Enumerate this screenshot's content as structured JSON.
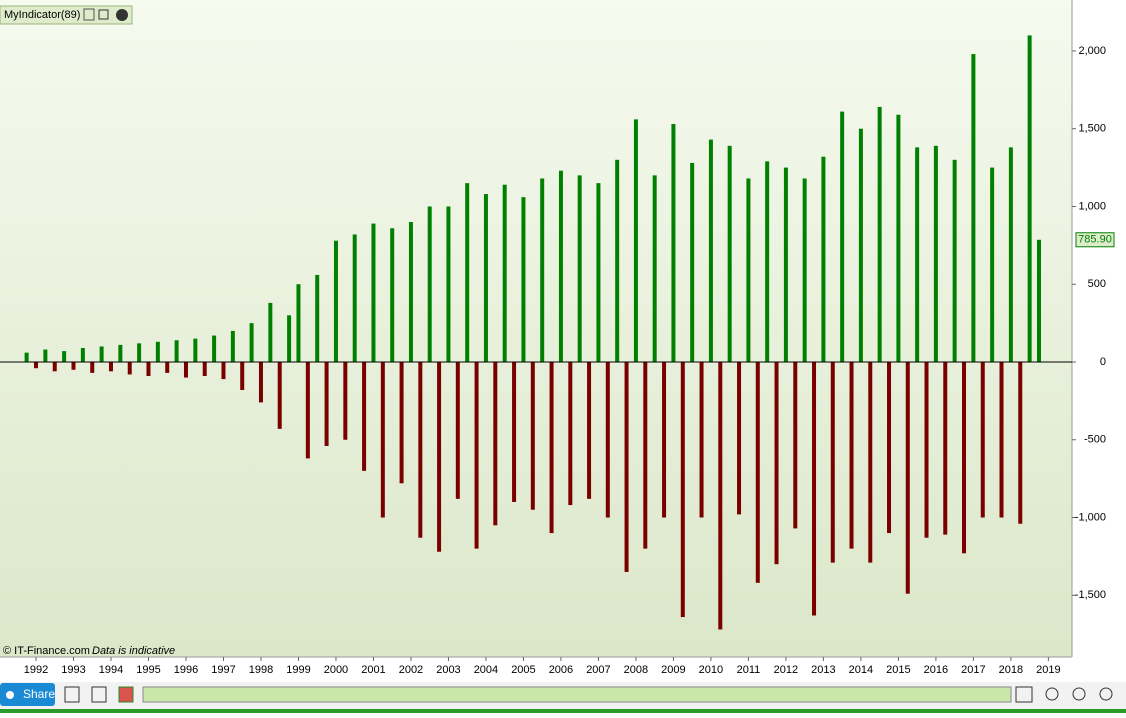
{
  "chart_data": {
    "type": "bar",
    "title": "MyIndicator(89)",
    "source": "© IT-Finance.com",
    "note": "Data is indicative",
    "up_color": "#008000",
    "down_color": "#7a0000",
    "xlim": [
      1991.04,
      2019.63
    ],
    "ylim": [
      -1884,
      2289
    ],
    "xticks": [
      1992,
      1993,
      1994,
      1995,
      1996,
      1997,
      1998,
      1999,
      2000,
      2001,
      2002,
      2003,
      2004,
      2005,
      2006,
      2007,
      2008,
      2009,
      2010,
      2011,
      2012,
      2013,
      2014,
      2015,
      2016,
      2017,
      2018,
      2019
    ],
    "yticks": [
      {
        "value": -1500,
        "label": "-1,500"
      },
      {
        "value": -1000,
        "label": "-1,000"
      },
      -500,
      0,
      500,
      {
        "value": 1000,
        "label": "1,000"
      },
      {
        "value": 1500,
        "label": "1,500"
      },
      {
        "value": 2000,
        "label": "2,000"
      }
    ],
    "x": [
      1991.75,
      1992,
      1992.25,
      1992.5,
      1992.75,
      1993,
      1993.25,
      1993.5,
      1993.75,
      1994,
      1994.25,
      1994.5,
      1994.75,
      1995,
      1995.25,
      1995.5,
      1995.75,
      1996,
      1996.25,
      1996.5,
      1996.75,
      1997,
      1997.25,
      1997.5,
      1997.75,
      1998,
      1998.25,
      1998.5,
      1998.75,
      1999,
      1999.25,
      1999.5,
      1999.75,
      2000,
      2000.25,
      2000.5,
      2000.75,
      2001,
      2001.25,
      2001.5,
      2001.75,
      2002,
      2002.25,
      2002.5,
      2002.75,
      2003,
      2003.25,
      2003.5,
      2003.75,
      2004,
      2004.25,
      2004.5,
      2004.75,
      2005,
      2005.25,
      2005.5,
      2005.75,
      2006,
      2006.25,
      2006.5,
      2006.75,
      2007,
      2007.25,
      2007.5,
      2007.75,
      2008,
      2008.25,
      2008.5,
      2008.75,
      2009,
      2009.25,
      2009.5,
      2009.75,
      2010,
      2010.25,
      2010.5,
      2010.75,
      2011,
      2011.25,
      2011.5,
      2011.75,
      2012,
      2012.25,
      2012.5,
      2012.75,
      2013,
      2013.25,
      2013.5,
      2013.75,
      2014,
      2014.25,
      2014.5,
      2014.75,
      2015,
      2015.25,
      2015.5,
      2015.75,
      2016,
      2016.25,
      2016.5,
      2016.75,
      2017,
      2017.25,
      2017.5,
      2017.75,
      2018,
      2018.25,
      2018.5,
      2018.75
    ],
    "values": [
      60,
      -40,
      80,
      -60,
      70,
      -50,
      90,
      -70,
      100,
      -60,
      110,
      -80,
      120,
      -90,
      130,
      -70,
      140,
      -100,
      150,
      -90,
      170,
      -110,
      200,
      -180,
      250,
      -260,
      380,
      -430,
      300,
      500,
      -620,
      560,
      -540,
      780,
      -500,
      820,
      -700,
      890,
      -1000,
      860,
      -780,
      900,
      -1130,
      1000,
      -1220,
      1000,
      -880,
      1150,
      -1200,
      1080,
      -1050,
      1140,
      -900,
      1060,
      -950,
      1180,
      -1100,
      1230,
      -920,
      1200,
      -880,
      1150,
      -1000,
      1300,
      -1350,
      1560,
      -1200,
      1200,
      -1000,
      1530,
      -1640,
      1280,
      -1000,
      1430,
      -1720,
      1390,
      -980,
      1180,
      -1420,
      1290,
      -1300,
      1250,
      -1070,
      1180,
      -1630,
      1320,
      -1290,
      1610,
      -1200,
      1500,
      -1290,
      1640,
      -1100,
      1590,
      -1490,
      1380,
      -1130,
      1390,
      -1110,
      1300,
      -1230,
      1980,
      -1000,
      1250,
      -1000,
      1380,
      -1040,
      2100,
      785.9
    ],
    "last_value_label": "785.90"
  },
  "toolbar": {
    "share": "Share"
  }
}
